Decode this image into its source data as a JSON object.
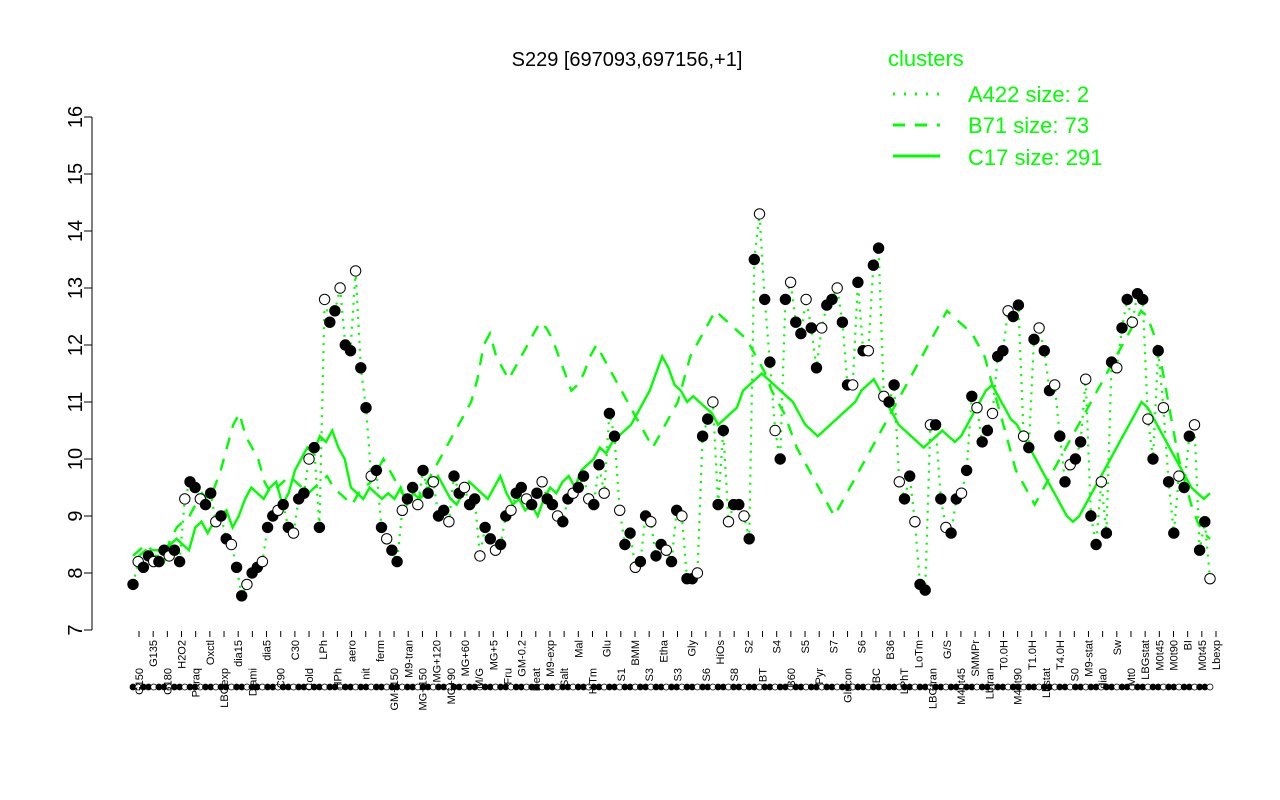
{
  "chart_data": {
    "type": "line",
    "title": "S229 [697093,697156,+1]",
    "xlabel": "",
    "ylabel": "",
    "ylim": [
      7,
      16
    ],
    "yticks": [
      7,
      8,
      9,
      10,
      11,
      12,
      13,
      14,
      15,
      16
    ],
    "grid": false,
    "legend": {
      "title": "clusters",
      "placement": "top-right",
      "color": "#00ff00",
      "entries": [
        {
          "label": "A422 size: 2",
          "style": "dotted"
        },
        {
          "label": "B71 size: 73",
          "style": "dashed"
        },
        {
          "label": "C17 size: 291",
          "style": "solid"
        }
      ]
    },
    "x_tick_labels_top": [
      "G135",
      "H2O2",
      "Oxctl",
      "dia15",
      "dia5",
      "C30",
      "LPh",
      "aero",
      "ferm",
      "M9-tran",
      "MG+120",
      "MG+60",
      "MG+5",
      "GM-0.2",
      "M9-exp",
      "Mal",
      "Glu",
      "BMM",
      "Etha",
      "Gly",
      "HiOs",
      "S2",
      "S4",
      "S5",
      "S7",
      "S6",
      "B36",
      "LoTm",
      "G/S",
      "SMMPr",
      "T0.0H",
      "T1.0H",
      "T4.0H",
      "M9-stat",
      "Sw",
      "LBGstat",
      "M0t45",
      "M0t90",
      "BI",
      "M0t45",
      "Lbexp"
    ],
    "x_tick_labels_bottom": [
      "G150",
      "G180",
      "Paraq",
      "LBGexp",
      "Diami",
      "C90",
      "Cold",
      "HPh",
      "nit",
      "GM+150",
      "MG+150",
      "MG+90",
      "M/G",
      "Fru",
      "Heat",
      "Salt",
      "HiTm",
      "S1",
      "S3",
      "S3",
      "S6",
      "S8",
      "BT",
      "B60",
      "Pyr",
      "Glucon",
      "BC",
      "LPhT",
      "LBGtran",
      "M40t45",
      "Lbtran",
      "M40t90",
      "Lbstat",
      "S0",
      "dia0",
      "Mt0"
    ],
    "series": [
      {
        "style": "solid",
        "values": [
          8.2,
          8.3,
          8.4,
          8.3,
          8.3,
          8.2,
          8.5,
          8.6,
          8.5,
          8.4,
          8.8,
          8.9,
          8.7,
          8.9,
          9.0,
          9.1,
          8.8,
          9.0,
          9.3,
          9.5,
          9.4,
          9.3,
          9.5,
          9.6,
          9.2,
          9.4,
          9.8,
          10.0,
          10.2,
          10.1,
          10.4,
          10.3,
          10.5,
          10.2,
          10.0,
          9.5,
          9.4,
          9.3,
          9.5,
          9.4,
          9.3,
          9.4,
          9.3,
          9.5,
          9.2,
          9.4,
          9.3,
          9.4,
          9.6,
          9.7,
          9.5,
          9.3,
          9.2,
          9.4,
          9.6,
          9.5,
          9.4,
          9.3,
          9.5,
          9.7,
          9.4,
          9.2,
          9.3,
          9.1,
          9.2,
          9.0,
          9.3,
          9.5,
          9.4,
          9.6,
          9.7,
          9.5,
          9.8,
          9.9,
          10.0,
          10.2,
          10.1,
          10.3,
          10.4,
          10.5,
          10.6,
          10.8,
          11.0,
          11.2,
          11.5,
          11.8,
          11.6,
          11.3,
          11.2,
          11.0,
          11.1,
          11.0,
          10.9,
          10.8,
          10.6,
          10.7,
          10.8,
          10.9,
          11.2,
          11.3,
          11.4,
          11.5,
          11.4,
          11.3,
          11.2,
          11.1,
          11.0,
          10.8,
          10.6,
          10.5,
          10.4,
          10.5,
          10.6,
          10.7,
          10.8,
          10.9,
          11.0,
          11.2,
          11.3,
          11.4,
          11.2,
          11.0,
          10.8,
          10.6,
          10.5,
          10.4,
          10.3,
          10.2,
          10.3,
          10.4,
          10.5,
          10.4,
          10.3,
          10.4,
          10.6,
          10.8,
          11.0,
          11.2,
          11.3,
          11.1,
          10.9,
          10.7,
          10.6,
          10.4,
          10.2,
          10.0,
          9.8,
          9.6,
          9.4,
          9.2,
          9.0,
          8.9,
          9.0,
          9.2,
          9.4,
          9.6,
          9.8,
          10.0,
          10.2,
          10.4,
          10.6,
          10.8,
          11.0,
          10.9,
          10.7,
          10.5,
          10.3,
          10.1,
          9.9,
          9.7,
          9.5,
          9.4,
          9.3,
          9.4
        ]
      },
      {
        "style": "dashed",
        "values": [
          8.3,
          8.4,
          8.5,
          8.4,
          8.4,
          8.3,
          8.6,
          8.8,
          8.9,
          9.0,
          9.2,
          9.4,
          9.3,
          9.5,
          9.8,
          10.2,
          10.6,
          10.8,
          10.4,
          10.2,
          10.0,
          9.6,
          9.4,
          9.5,
          9.6,
          9.7,
          9.6,
          9.5,
          9.4,
          9.5,
          9.6,
          9.7,
          9.5,
          9.4,
          9.3,
          9.2,
          9.4,
          9.5,
          9.6,
          9.8,
          10.0,
          9.8,
          9.6,
          9.4,
          9.3,
          9.2,
          9.4,
          9.6,
          9.8,
          10.0,
          10.2,
          10.4,
          10.6,
          10.8,
          11.0,
          11.4,
          12.0,
          12.2,
          11.8,
          11.6,
          11.4,
          11.6,
          11.8,
          12.0,
          12.2,
          12.4,
          12.3,
          12.1,
          11.8,
          11.5,
          11.2,
          11.3,
          11.5,
          11.8,
          12.0,
          11.8,
          11.6,
          11.4,
          11.2,
          11.0,
          10.8,
          10.6,
          10.4,
          10.2,
          10.4,
          10.6,
          10.8,
          11.0,
          11.4,
          11.8,
          12.0,
          12.2,
          12.4,
          12.6,
          12.5,
          12.4,
          12.3,
          12.2,
          12.1,
          11.9,
          11.7,
          11.5,
          11.2,
          11.0,
          10.8,
          10.5,
          10.2,
          10.0,
          9.8,
          9.6,
          9.4,
          9.2,
          9.0,
          9.2,
          9.4,
          9.6,
          9.8,
          10.0,
          10.2,
          10.4,
          10.6,
          10.8,
          11.0,
          11.2,
          11.4,
          11.6,
          11.8,
          12.0,
          12.2,
          12.4,
          12.6,
          12.5,
          12.4,
          12.3,
          12.2,
          12.0,
          11.8,
          11.4,
          11.0,
          10.6,
          10.2,
          9.8,
          9.6,
          9.4,
          9.2,
          9.4,
          9.6,
          9.8,
          10.0,
          10.2,
          10.4,
          10.6,
          10.8,
          11.0,
          11.2,
          11.4,
          11.6,
          11.8,
          12.0,
          12.2,
          12.4,
          12.6,
          12.5,
          12.2,
          11.8,
          11.2,
          10.6,
          10.0,
          9.6,
          9.2,
          8.9,
          8.7,
          8.6
        ]
      },
      {
        "style": "dotted",
        "values": [
          7.8,
          8.2,
          8.1,
          8.3,
          8.2,
          8.2,
          8.4,
          8.3,
          8.4,
          8.2,
          9.3,
          9.6,
          9.5,
          9.3,
          9.2,
          9.4,
          8.9,
          9.0,
          8.6,
          8.5,
          8.1,
          7.6,
          7.8,
          8.0,
          8.1,
          8.2,
          8.8,
          9.0,
          9.1,
          9.2,
          8.8,
          8.7,
          9.3,
          9.4,
          10.0,
          10.2,
          8.8,
          12.8,
          12.4,
          12.6,
          13.0,
          12.0,
          11.9,
          13.3,
          11.6,
          10.9,
          9.7,
          9.8,
          8.8,
          8.6,
          8.4,
          8.2,
          9.1,
          9.3,
          9.5,
          9.2,
          9.8,
          9.4,
          9.6,
          9.0,
          9.1,
          8.9,
          9.7,
          9.4,
          9.5,
          9.2,
          9.3,
          8.3,
          8.8,
          8.6,
          8.4,
          8.5,
          9.0,
          9.1,
          9.4,
          9.5,
          9.3,
          9.2,
          9.4,
          9.6,
          9.3,
          9.2,
          9.0,
          8.9,
          9.3,
          9.4,
          9.5,
          9.7,
          9.3,
          9.2,
          9.9,
          9.4,
          10.8,
          10.4,
          9.1,
          8.5,
          8.7,
          8.1,
          8.2,
          9.0,
          8.9,
          8.3,
          8.5,
          8.4,
          8.2,
          9.1,
          9.0,
          7.9,
          7.9,
          8.0,
          10.4,
          10.7,
          11.0,
          9.2,
          10.5,
          8.9,
          9.2,
          9.2,
          9.0,
          8.6,
          13.5,
          14.3,
          12.8,
          11.7,
          10.5,
          10.0,
          12.8,
          13.1,
          12.4,
          12.2,
          12.8,
          12.3,
          11.6,
          12.3,
          12.7,
          12.8,
          13.0,
          12.4,
          11.3,
          11.3,
          13.1,
          11.9,
          11.9,
          13.4,
          13.7,
          11.1,
          11.0,
          11.3,
          9.6,
          9.3,
          9.7,
          8.9,
          7.8,
          7.7,
          10.6,
          10.6,
          9.3,
          8.8,
          8.7,
          9.3,
          9.4,
          9.8,
          11.1,
          10.9,
          10.3,
          10.5,
          10.8,
          11.8,
          11.9,
          12.6,
          12.5,
          12.7,
          10.4,
          10.2,
          12.1,
          12.3,
          11.9,
          11.2,
          11.3,
          10.4,
          9.6,
          9.9,
          10.0,
          10.3,
          11.4,
          9.0,
          8.5,
          9.6,
          8.7,
          11.7,
          11.6,
          12.3,
          12.8,
          12.4,
          12.9,
          12.8,
          10.7,
          10.0,
          11.9,
          10.9,
          9.6,
          8.7,
          9.7,
          9.5,
          10.4,
          10.6,
          8.4,
          8.9,
          7.9
        ]
      }
    ]
  }
}
